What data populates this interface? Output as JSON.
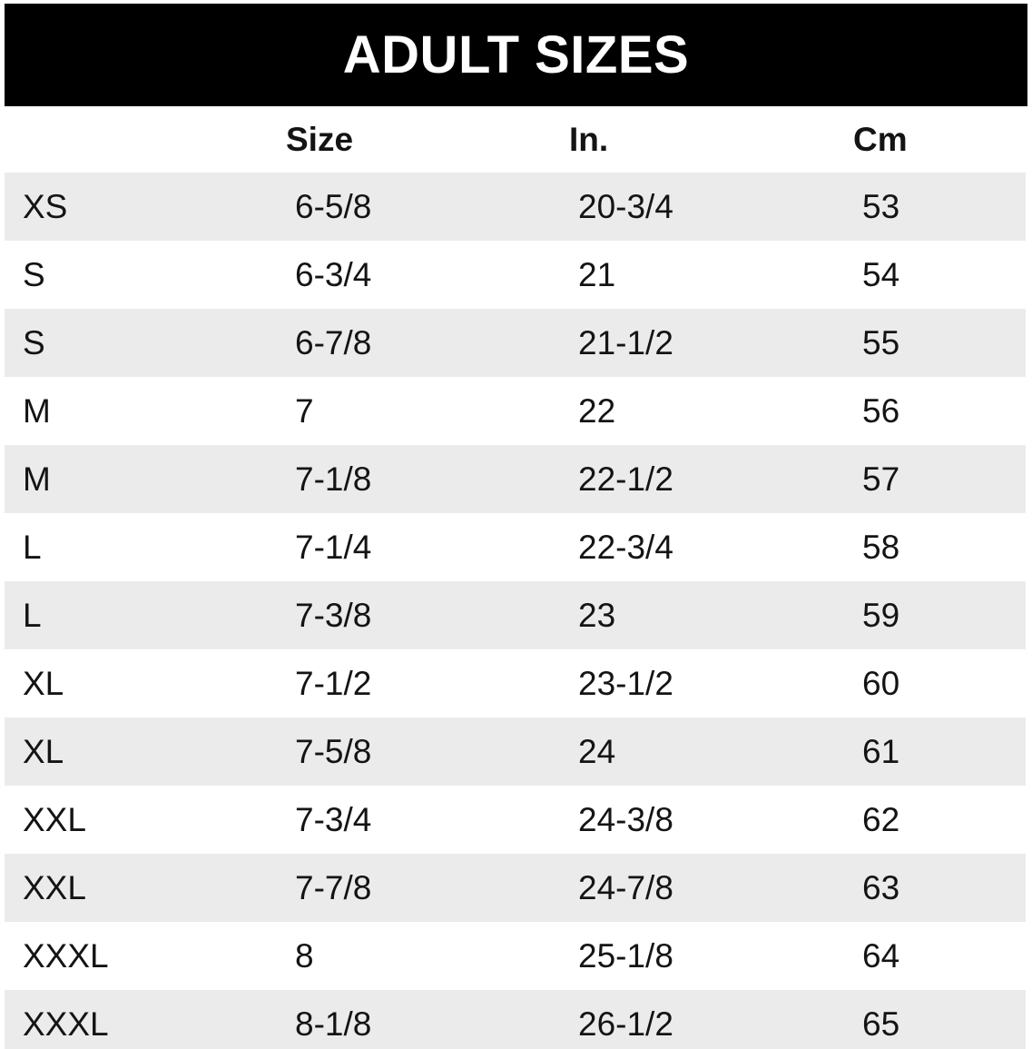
{
  "chart_data": {
    "type": "table",
    "title": "ADULT SIZES",
    "columns": [
      "",
      "Size",
      "In.",
      "Cm"
    ],
    "rows": [
      [
        "XS",
        "6-5/8",
        "20-3/4",
        "53"
      ],
      [
        "S",
        "6-3/4",
        "21",
        "54"
      ],
      [
        "S",
        "6-7/8",
        "21-1/2",
        "55"
      ],
      [
        "M",
        "7",
        "22",
        "56"
      ],
      [
        "M",
        "7-1/8",
        "22-1/2",
        "57"
      ],
      [
        "L",
        "7-1/4",
        "22-3/4",
        "58"
      ],
      [
        "L",
        "7-3/8",
        "23",
        "59"
      ],
      [
        "XL",
        "7-1/2",
        "23-1/2",
        "60"
      ],
      [
        "XL",
        "7-5/8",
        "24",
        "61"
      ],
      [
        "XXL",
        "7-3/4",
        "24-3/8",
        "62"
      ],
      [
        "XXL",
        "7-7/8",
        "24-7/8",
        "63"
      ],
      [
        "XXXL",
        "8",
        "25-1/8",
        "64"
      ],
      [
        "XXXL",
        "8-1/8",
        "26-1/2",
        "65"
      ]
    ],
    "layout": {
      "striped": true,
      "first_row_shaded": true,
      "last_row_clipped_at_bottom": true
    }
  },
  "colors": {
    "header_bg": "#000000",
    "header_text": "#ffffff",
    "row_alt_bg": "#ebebeb",
    "row_bg": "#ffffff",
    "text": "#141414"
  }
}
